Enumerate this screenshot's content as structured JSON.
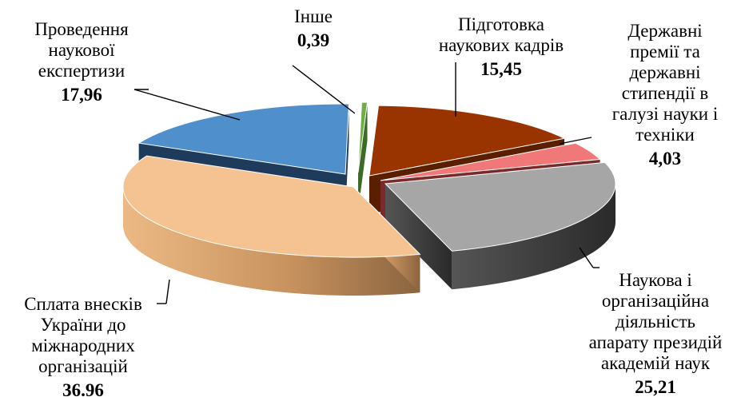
{
  "chart_data": {
    "type": "pie",
    "title": "",
    "legend": "none",
    "slices": [
      {
        "label_lines": [
          "Підготовка",
          "наукових кадрів"
        ],
        "value_label": "15,45",
        "value": 15.45,
        "color": "#993300"
      },
      {
        "label_lines": [
          "Державні",
          "премії та",
          "державні",
          "стипендії в",
          "галузі науки і",
          "техніки"
        ],
        "value_label": "4,03",
        "value": 4.03,
        "color": "#f07878"
      },
      {
        "label_lines": [
          "Наукова і",
          "організаційна",
          "діяльність",
          "апарату президій",
          "академій наук"
        ],
        "value_label": "25,21",
        "value": 25.21,
        "color": "#a6a6a6"
      },
      {
        "label_lines": [
          "Сплата внесків",
          "України до",
          "міжнародних",
          "організацій"
        ],
        "value_label": "36.96",
        "value": 36.96,
        "color": "#f5c292"
      },
      {
        "label_lines": [
          "Проведення",
          "наукової",
          "експертизи"
        ],
        "value_label": "17,96",
        "value": 17.96,
        "color": "#4f8fcc"
      },
      {
        "label_lines": [
          "Інше"
        ],
        "value_label": "0,39",
        "value": 0.39,
        "color": "#70ad47"
      }
    ]
  }
}
